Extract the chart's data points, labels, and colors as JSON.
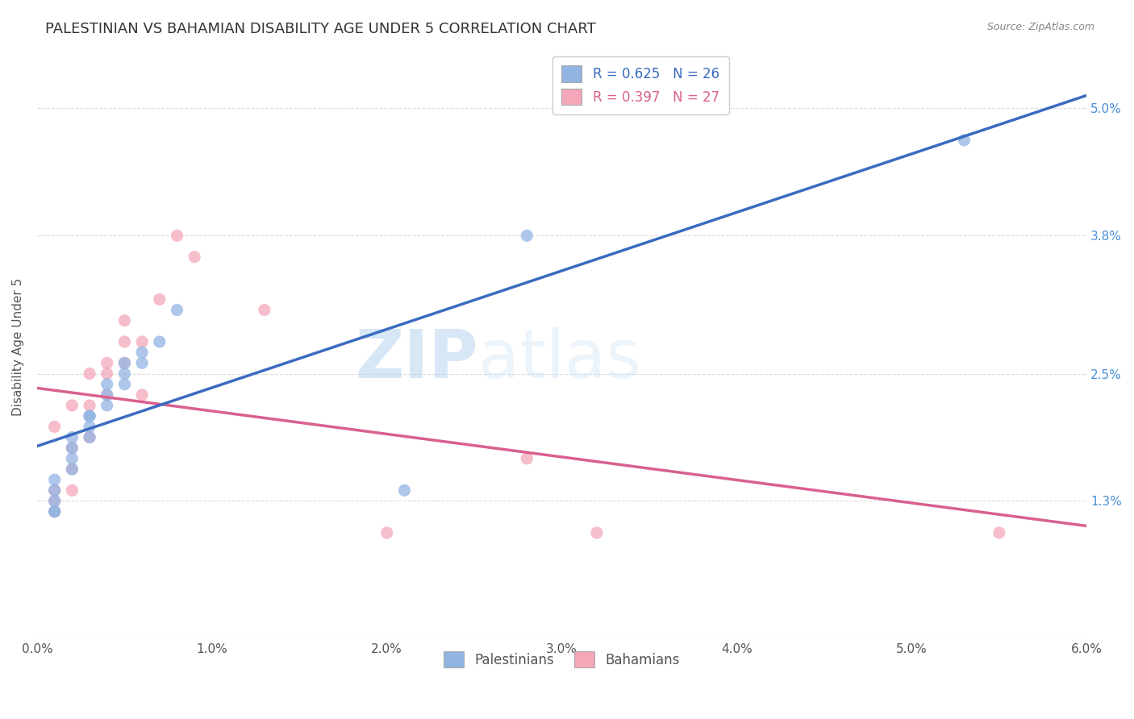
{
  "title": "PALESTINIAN VS BAHAMIAN DISABILITY AGE UNDER 5 CORRELATION CHART",
  "source": "Source: ZipAtlas.com",
  "ylabel": "Disability Age Under 5",
  "xlim": [
    0.0,
    0.06
  ],
  "ylim": [
    0.0,
    0.055
  ],
  "ytick_labels": [
    "1.3%",
    "2.5%",
    "3.8%",
    "5.0%"
  ],
  "ytick_values": [
    0.013,
    0.025,
    0.038,
    0.05
  ],
  "xtick_labels": [
    "0.0%",
    "1.0%",
    "2.0%",
    "3.0%",
    "4.0%",
    "5.0%",
    "6.0%"
  ],
  "xtick_values": [
    0.0,
    0.01,
    0.02,
    0.03,
    0.04,
    0.05,
    0.06
  ],
  "palestinians_x": [
    0.001,
    0.001,
    0.001,
    0.001,
    0.001,
    0.002,
    0.002,
    0.002,
    0.002,
    0.003,
    0.003,
    0.003,
    0.003,
    0.004,
    0.004,
    0.004,
    0.005,
    0.005,
    0.005,
    0.006,
    0.006,
    0.007,
    0.008,
    0.021,
    0.028,
    0.053
  ],
  "palestinians_y": [
    0.012,
    0.012,
    0.013,
    0.014,
    0.015,
    0.016,
    0.017,
    0.018,
    0.019,
    0.019,
    0.02,
    0.021,
    0.021,
    0.022,
    0.023,
    0.024,
    0.024,
    0.025,
    0.026,
    0.026,
    0.027,
    0.028,
    0.031,
    0.014,
    0.038,
    0.047
  ],
  "bahamians_x": [
    0.001,
    0.001,
    0.001,
    0.001,
    0.002,
    0.002,
    0.002,
    0.002,
    0.003,
    0.003,
    0.003,
    0.004,
    0.004,
    0.004,
    0.005,
    0.005,
    0.005,
    0.006,
    0.006,
    0.007,
    0.008,
    0.009,
    0.013,
    0.02,
    0.028,
    0.032,
    0.055
  ],
  "bahamians_y": [
    0.012,
    0.013,
    0.014,
    0.02,
    0.014,
    0.016,
    0.018,
    0.022,
    0.019,
    0.022,
    0.025,
    0.023,
    0.025,
    0.026,
    0.026,
    0.028,
    0.03,
    0.023,
    0.028,
    0.032,
    0.038,
    0.036,
    0.031,
    0.01,
    0.017,
    0.01,
    0.01
  ],
  "pal_R": 0.625,
  "pal_N": 26,
  "bah_R": 0.397,
  "bah_N": 27,
  "pal_color": "#92b4e3",
  "bah_color": "#f4a7b9",
  "pal_line_color": "#3a6bbf",
  "bah_line_color": "#d96090",
  "marker_size": 120,
  "title_fontsize": 13,
  "axis_label_fontsize": 11,
  "tick_fontsize": 11,
  "legend_fontsize": 12,
  "watermark_zip": "ZIP",
  "watermark_atlas": "atlas",
  "background_color": "#ffffff",
  "grid_color": "#cccccc"
}
